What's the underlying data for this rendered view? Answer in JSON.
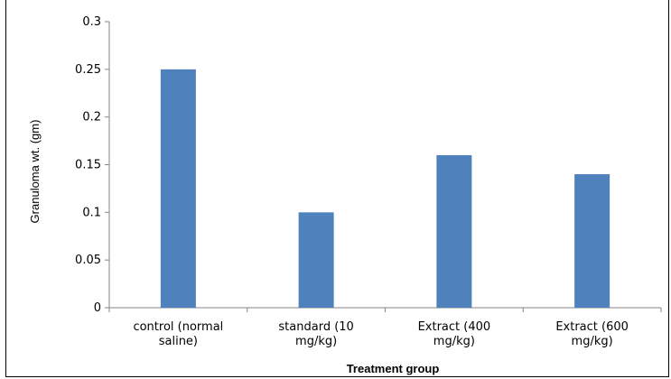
{
  "chart_data": {
    "type": "bar",
    "categories": [
      [
        "control (normal",
        "saline)"
      ],
      [
        "standard (10",
        "mg/kg)"
      ],
      [
        "Extract (400",
        "mg/kg)"
      ],
      [
        "Extract (600",
        "mg/kg)"
      ]
    ],
    "values": [
      0.25,
      0.1,
      0.16,
      0.14
    ],
    "title": "",
    "xlabel": "Treatment group",
    "ylabel": "Granuloma wt. (gm)",
    "ylim": [
      0,
      0.3
    ],
    "yticks": [
      0,
      0.05,
      0.1,
      0.15,
      0.2,
      0.25,
      0.3
    ],
    "ytick_labels": [
      "0",
      "0.05",
      "0.1",
      "0.15",
      "0.2",
      "0.25",
      "0.3"
    ],
    "grid": false,
    "legend": "none",
    "bar_color": "#4f81bd",
    "axis_color": "#868686"
  }
}
